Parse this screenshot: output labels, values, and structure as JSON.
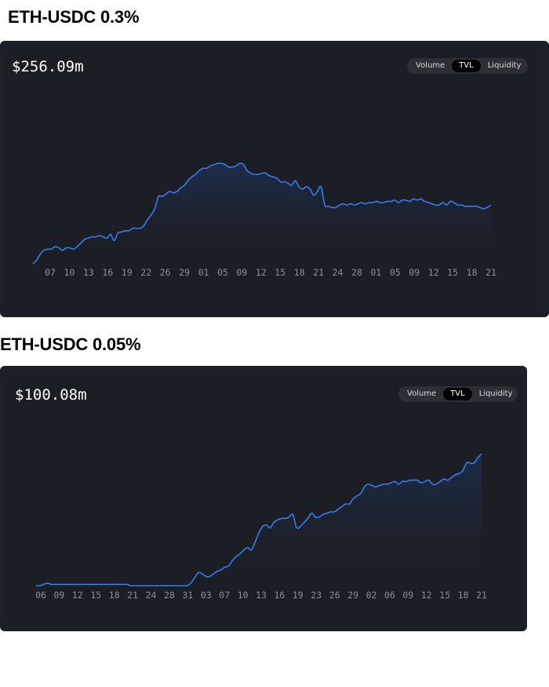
{
  "sections": [
    {
      "title": "ETH-USDC 0.3%",
      "value": "$256.09m",
      "toggle": [
        "Volume",
        "TVL",
        "Liquidity"
      ],
      "active": "TVL"
    },
    {
      "title": "ETH-USDC 0.05%",
      "value": "$100.08m",
      "toggle": [
        "Volume",
        "TVL",
        "Liquidity"
      ],
      "active": "TVL"
    }
  ],
  "colors": {
    "line": "#3a7bf0",
    "panel": "#1c1f25",
    "tick": "#8a8f98"
  },
  "chart_data": [
    {
      "type": "area",
      "series_name": "TVL",
      "x_ticks": [
        "07",
        "10",
        "13",
        "16",
        "19",
        "22",
        "26",
        "29",
        "01",
        "05",
        "09",
        "12",
        "15",
        "18",
        "21",
        "24",
        "28",
        "01",
        "05",
        "09",
        "12",
        "15",
        "18",
        "21"
      ],
      "y_relative": [
        0.0,
        0.03,
        0.08,
        0.11,
        0.12,
        0.12,
        0.14,
        0.13,
        0.11,
        0.13,
        0.13,
        0.12,
        0.14,
        0.17,
        0.2,
        0.21,
        0.22,
        0.22,
        0.23,
        0.22,
        0.21,
        0.24,
        0.19,
        0.25,
        0.26,
        0.27,
        0.27,
        0.29,
        0.29,
        0.29,
        0.31,
        0.36,
        0.4,
        0.45,
        0.55,
        0.55,
        0.57,
        0.59,
        0.58,
        0.59,
        0.62,
        0.64,
        0.68,
        0.71,
        0.73,
        0.76,
        0.78,
        0.78,
        0.8,
        0.81,
        0.82,
        0.82,
        0.81,
        0.79,
        0.79,
        0.8,
        0.82,
        0.81,
        0.76,
        0.74,
        0.73,
        0.73,
        0.74,
        0.74,
        0.72,
        0.71,
        0.7,
        0.67,
        0.67,
        0.66,
        0.64,
        0.68,
        0.63,
        0.61,
        0.63,
        0.61,
        0.56,
        0.59,
        0.63,
        0.48,
        0.47,
        0.46,
        0.46,
        0.48,
        0.49,
        0.48,
        0.49,
        0.48,
        0.49,
        0.5,
        0.49,
        0.5,
        0.5,
        0.51,
        0.5,
        0.5,
        0.51,
        0.51,
        0.52,
        0.5,
        0.52,
        0.52,
        0.51,
        0.53,
        0.52,
        0.53,
        0.51,
        0.5,
        0.49,
        0.48,
        0.48,
        0.5,
        0.48,
        0.51,
        0.5,
        0.48,
        0.48,
        0.47,
        0.47,
        0.47,
        0.47,
        0.46,
        0.45,
        0.46,
        0.48
      ]
    },
    {
      "type": "area",
      "series_name": "TVL",
      "x_ticks": [
        "06",
        "09",
        "12",
        "15",
        "18",
        "21",
        "24",
        "28",
        "31",
        "03",
        "07",
        "10",
        "13",
        "16",
        "19",
        "23",
        "26",
        "29",
        "02",
        "06",
        "09",
        "12",
        "15",
        "18",
        "21"
      ],
      "y_relative": [
        0.0,
        0.0,
        0.01,
        0.02,
        0.01,
        0.01,
        0.01,
        0.01,
        0.01,
        0.01,
        0.01,
        0.01,
        0.01,
        0.01,
        0.01,
        0.01,
        0.01,
        0.01,
        0.01,
        0.01,
        0.01,
        0.01,
        0.01,
        0.01,
        0.01,
        0.0,
        0.0,
        0.0,
        0.0,
        0.0,
        0.0,
        0.0,
        0.0,
        0.0,
        0.0,
        0.0,
        0.0,
        0.0,
        0.0,
        0.0,
        0.0,
        0.02,
        0.06,
        0.1,
        0.09,
        0.07,
        0.07,
        0.09,
        0.11,
        0.12,
        0.14,
        0.15,
        0.19,
        0.22,
        0.24,
        0.27,
        0.29,
        0.27,
        0.33,
        0.4,
        0.45,
        0.46,
        0.44,
        0.48,
        0.5,
        0.51,
        0.51,
        0.52,
        0.54,
        0.44,
        0.45,
        0.48,
        0.51,
        0.55,
        0.52,
        0.52,
        0.54,
        0.55,
        0.56,
        0.56,
        0.58,
        0.6,
        0.62,
        0.62,
        0.66,
        0.68,
        0.7,
        0.75,
        0.77,
        0.76,
        0.75,
        0.76,
        0.77,
        0.77,
        0.78,
        0.79,
        0.77,
        0.79,
        0.79,
        0.8,
        0.8,
        0.8,
        0.78,
        0.79,
        0.8,
        0.77,
        0.77,
        0.79,
        0.81,
        0.8,
        0.82,
        0.84,
        0.85,
        0.87,
        0.93,
        0.93,
        0.93,
        0.97,
        1.0
      ]
    }
  ]
}
